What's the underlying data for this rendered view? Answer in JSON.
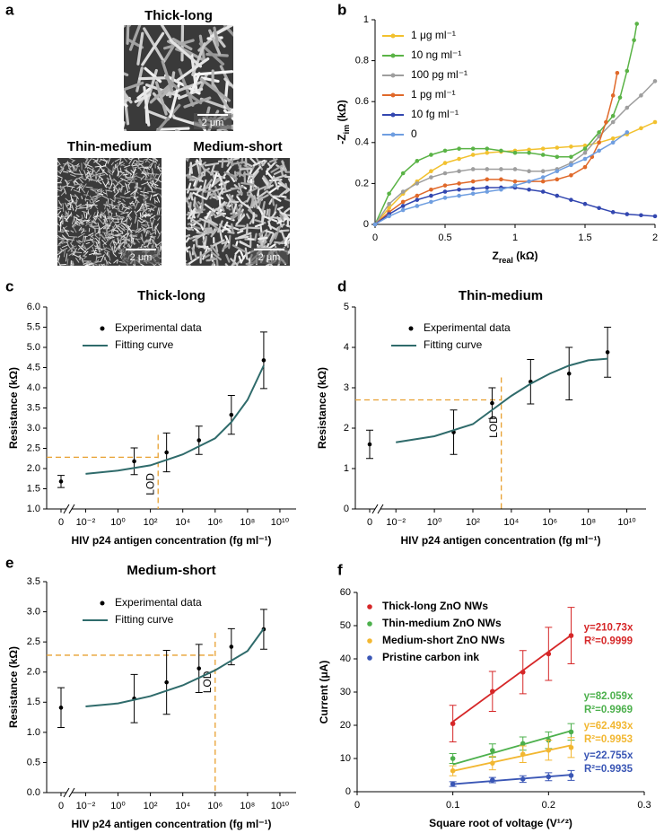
{
  "panel_a": {
    "panel": "a",
    "images": [
      {
        "title": "Thick-long",
        "scale_bar": "2 μm"
      },
      {
        "title": "Thin-medium",
        "scale_bar": "2 μm"
      },
      {
        "title": "Medium-short",
        "scale_bar": "2 μm"
      }
    ]
  },
  "chart_data": [
    {
      "type": "line",
      "panel": "b",
      "x_label": [
        "Z",
        "real",
        " (kΩ)"
      ],
      "y_label": [
        "-Z",
        "im",
        " (kΩ)"
      ],
      "xlim": [
        0,
        2
      ],
      "xticks": [
        0,
        0.5,
        1,
        1.5,
        2
      ],
      "ylim": [
        0,
        1
      ],
      "yticks": [
        0,
        0.2,
        0.4,
        0.6,
        0.8,
        1
      ],
      "series": [
        {
          "name": "1 μg ml⁻¹",
          "color": "#f2c12e",
          "x": [
            0,
            0.1,
            0.2,
            0.3,
            0.4,
            0.5,
            0.6,
            0.7,
            0.8,
            0.9,
            1,
            1.1,
            1.2,
            1.3,
            1.4,
            1.5,
            1.6,
            1.7,
            1.8,
            1.9,
            2
          ],
          "values": [
            0,
            0.08,
            0.15,
            0.21,
            0.26,
            0.3,
            0.32,
            0.34,
            0.35,
            0.355,
            0.36,
            0.365,
            0.37,
            0.375,
            0.38,
            0.385,
            0.4,
            0.42,
            0.44,
            0.47,
            0.5
          ]
        },
        {
          "name": "10 ng ml⁻¹",
          "color": "#5ab346",
          "x": [
            0,
            0.1,
            0.2,
            0.3,
            0.4,
            0.5,
            0.6,
            0.7,
            0.8,
            0.9,
            1,
            1.1,
            1.2,
            1.3,
            1.4,
            1.5,
            1.6,
            1.7,
            1.75,
            1.8,
            1.85,
            1.87
          ],
          "values": [
            0,
            0.15,
            0.25,
            0.31,
            0.34,
            0.36,
            0.37,
            0.37,
            0.37,
            0.36,
            0.35,
            0.35,
            0.34,
            0.33,
            0.33,
            0.37,
            0.45,
            0.53,
            0.62,
            0.75,
            0.9,
            0.98
          ]
        },
        {
          "name": "100 pg ml⁻¹",
          "color": "#9e9e9e",
          "x": [
            0,
            0.1,
            0.2,
            0.3,
            0.4,
            0.5,
            0.6,
            0.7,
            0.8,
            0.9,
            1,
            1.1,
            1.2,
            1.3,
            1.4,
            1.5,
            1.6,
            1.7,
            1.8,
            1.9,
            2
          ],
          "values": [
            0,
            0.1,
            0.16,
            0.2,
            0.23,
            0.25,
            0.26,
            0.27,
            0.27,
            0.27,
            0.27,
            0.26,
            0.26,
            0.27,
            0.3,
            0.35,
            0.43,
            0.5,
            0.57,
            0.63,
            0.7
          ]
        },
        {
          "name": "1 pg ml⁻¹",
          "color": "#e0692a",
          "x": [
            0,
            0.1,
            0.2,
            0.3,
            0.4,
            0.5,
            0.6,
            0.7,
            0.8,
            0.9,
            1,
            1.1,
            1.2,
            1.3,
            1.4,
            1.5,
            1.55,
            1.6,
            1.65,
            1.7,
            1.73
          ],
          "values": [
            0,
            0.06,
            0.11,
            0.14,
            0.17,
            0.19,
            0.2,
            0.21,
            0.22,
            0.22,
            0.21,
            0.21,
            0.21,
            0.22,
            0.24,
            0.28,
            0.33,
            0.4,
            0.5,
            0.63,
            0.74
          ]
        },
        {
          "name": "10 fg ml⁻¹",
          "color": "#3347b0",
          "x": [
            0,
            0.1,
            0.2,
            0.3,
            0.4,
            0.5,
            0.6,
            0.7,
            0.8,
            0.9,
            1,
            1.1,
            1.2,
            1.3,
            1.4,
            1.5,
            1.6,
            1.7,
            1.8,
            1.9,
            2
          ],
          "values": [
            0,
            0.05,
            0.09,
            0.12,
            0.14,
            0.16,
            0.17,
            0.175,
            0.18,
            0.18,
            0.18,
            0.17,
            0.16,
            0.14,
            0.12,
            0.1,
            0.08,
            0.06,
            0.05,
            0.045,
            0.04
          ]
        },
        {
          "name": "0",
          "color": "#6f9ee0",
          "x": [
            0,
            0.1,
            0.2,
            0.3,
            0.4,
            0.5,
            0.6,
            0.7,
            0.8,
            0.9,
            1,
            1.1,
            1.2,
            1.3,
            1.4,
            1.5,
            1.6,
            1.7,
            1.8
          ],
          "values": [
            0,
            0.04,
            0.07,
            0.09,
            0.11,
            0.13,
            0.14,
            0.15,
            0.16,
            0.17,
            0.19,
            0.21,
            0.23,
            0.26,
            0.29,
            0.32,
            0.36,
            0.4,
            0.45
          ]
        }
      ]
    },
    {
      "type": "scatter",
      "panel": "c",
      "title": "Thick-long",
      "x_label": "HIV p24 antigen concentration (fg ml⁻¹)",
      "y_label": "Resistance (kΩ)",
      "xscale": "log",
      "axis_break": true,
      "xlim": [
        0.003,
        100000000000
      ],
      "xticks": [
        0,
        {
          "value": 0.01,
          "label": "10⁻²"
        },
        {
          "value": 1,
          "label": "10⁰"
        },
        {
          "value": 100,
          "label": "10²"
        },
        {
          "value": 10000,
          "label": "10⁴"
        },
        {
          "value": 1000000,
          "label": "10⁶"
        },
        {
          "value": 100000000,
          "label": "10⁸"
        },
        {
          "value": 10000000000,
          "label": "10¹⁰"
        }
      ],
      "ylim": [
        1,
        6
      ],
      "yticks": [
        {
          "value": 1,
          "label": "1.0"
        },
        {
          "value": 1.5,
          "label": "1.5"
        },
        {
          "value": 2,
          "label": "2.0"
        },
        {
          "value": 2.5,
          "label": "2.5"
        },
        {
          "value": 3,
          "label": "3.0"
        },
        {
          "value": 3.5,
          "label": "3.5"
        },
        {
          "value": 4,
          "label": "4.0"
        },
        {
          "value": 4.5,
          "label": "4.5"
        },
        {
          "value": 5,
          "label": "5.0"
        },
        {
          "value": 5.5,
          "label": "5.5"
        },
        {
          "value": 6,
          "label": "6.0"
        }
      ],
      "series": [
        {
          "name": "Experimental data",
          "color": "#000000",
          "x": [
            0,
            10,
            1000,
            100000,
            10000000,
            1000000000
          ],
          "values": [
            1.68,
            2.18,
            2.4,
            2.7,
            3.33,
            4.68
          ],
          "errors": [
            0.15,
            0.33,
            0.48,
            0.35,
            0.48,
            0.7
          ]
        },
        {
          "name": "Fitting curve",
          "color": "#2f6b6b",
          "x": [
            0.01,
            1,
            100,
            10000,
            1000000,
            10000000,
            100000000,
            1000000000
          ],
          "values": [
            1.87,
            1.95,
            2.08,
            2.35,
            2.75,
            3.15,
            3.7,
            4.55
          ]
        }
      ],
      "lod": {
        "label": "LOD",
        "x": 300,
        "y": 2.28,
        "color": "#e8a030"
      }
    },
    {
      "type": "scatter",
      "panel": "d",
      "title": "Thin-medium",
      "x_label": "HIV p24 antigen concentration (fg ml⁻¹)",
      "y_label": "Resistance (kΩ)",
      "xscale": "log",
      "axis_break": true,
      "xlim": [
        0.003,
        100000000000
      ],
      "xticks": [
        0,
        {
          "value": 0.01,
          "label": "10⁻²"
        },
        {
          "value": 1,
          "label": "10⁰"
        },
        {
          "value": 100,
          "label": "10²"
        },
        {
          "value": 10000,
          "label": "10⁴"
        },
        {
          "value": 1000000,
          "label": "10⁶"
        },
        {
          "value": 100000000,
          "label": "10⁸"
        },
        {
          "value": 10000000000,
          "label": "10¹⁰"
        }
      ],
      "ylim": [
        0,
        5
      ],
      "yticks": [
        0,
        1,
        2,
        3,
        4,
        5
      ],
      "series": [
        {
          "name": "Experimental data",
          "color": "#000000",
          "x": [
            0,
            10,
            1000,
            100000,
            10000000,
            1000000000
          ],
          "values": [
            1.6,
            1.9,
            2.62,
            3.15,
            3.35,
            3.88
          ],
          "errors": [
            0.35,
            0.55,
            0.38,
            0.55,
            0.65,
            0.62
          ]
        },
        {
          "name": "Fitting curve",
          "color": "#2f6b6b",
          "x": [
            0.01,
            1,
            100,
            1000,
            10000,
            100000,
            1000000,
            10000000,
            100000000,
            1000000000
          ],
          "values": [
            1.65,
            1.8,
            2.1,
            2.45,
            2.8,
            3.1,
            3.35,
            3.55,
            3.68,
            3.72
          ]
        }
      ],
      "lod": {
        "label": "LOD",
        "x": 3000,
        "y": 2.7,
        "color": "#e8a030"
      }
    },
    {
      "type": "scatter",
      "panel": "e",
      "title": "Medium-short",
      "x_label": "HIV p24 antigen concentration (fg ml⁻¹)",
      "y_label": "Resistance (kΩ)",
      "xscale": "log",
      "axis_break": true,
      "xlim": [
        0.003,
        100000000000
      ],
      "xticks": [
        0,
        {
          "value": 0.01,
          "label": "10⁻²"
        },
        {
          "value": 1,
          "label": "10⁰"
        },
        {
          "value": 100,
          "label": "10²"
        },
        {
          "value": 10000,
          "label": "10⁴"
        },
        {
          "value": 1000000,
          "label": "10⁶"
        },
        {
          "value": 100000000,
          "label": "10⁸"
        },
        {
          "value": 10000000000,
          "label": "10¹⁰"
        }
      ],
      "ylim": [
        0,
        3.5
      ],
      "yticks": [
        {
          "value": 0,
          "label": "0.0"
        },
        {
          "value": 0.5,
          "label": "0.5"
        },
        {
          "value": 1,
          "label": "1.0"
        },
        {
          "value": 1.5,
          "label": "1.5"
        },
        {
          "value": 2,
          "label": "2.0"
        },
        {
          "value": 2.5,
          "label": "2.5"
        },
        {
          "value": 3,
          "label": "3.0"
        },
        {
          "value": 3.5,
          "label": "3.5"
        }
      ],
      "series": [
        {
          "name": "Experimental data",
          "color": "#000000",
          "x": [
            0,
            10,
            1000,
            100000,
            10000000,
            1000000000
          ],
          "values": [
            1.41,
            1.56,
            1.83,
            2.06,
            2.42,
            2.71
          ],
          "errors": [
            0.33,
            0.4,
            0.53,
            0.4,
            0.3,
            0.33
          ]
        },
        {
          "name": "Fitting curve",
          "color": "#2f6b6b",
          "x": [
            0.01,
            1,
            100,
            10000,
            1000000,
            100000000,
            1000000000
          ],
          "values": [
            1.43,
            1.48,
            1.6,
            1.78,
            2.03,
            2.35,
            2.72
          ]
        }
      ],
      "lod": {
        "label": "LOD",
        "x": 1000000,
        "y": 2.28,
        "color": "#e8a030"
      }
    },
    {
      "type": "scatter",
      "panel": "f",
      "x_label": "Square root of voltage (V¹ᐟ²)",
      "y_label": "Current (μA)",
      "xlim": [
        0,
        0.3
      ],
      "xticks": [
        0,
        0.1,
        0.2,
        0.3
      ],
      "ylim": [
        0,
        60
      ],
      "yticks": [
        0,
        10,
        20,
        30,
        40,
        50,
        60
      ],
      "series": [
        {
          "name": "Thick-long ZnO NWs",
          "color": "#d62728",
          "x": [
            0.1,
            0.1414,
            0.1732,
            0.2,
            0.2236
          ],
          "values": [
            20.5,
            30.2,
            36,
            41.5,
            47
          ],
          "errors": [
            5.5,
            6,
            6.5,
            8,
            8.5
          ],
          "fit": {
            "slope": 210.73,
            "label": "y=210.73x",
            "r2_label": "R²=0.9999"
          }
        },
        {
          "name": "Thin-medium ZnO NWs",
          "color": "#4cb04c",
          "x": [
            0.1,
            0.1414,
            0.1732,
            0.2,
            0.2236
          ],
          "values": [
            10,
            12.4,
            14.5,
            15.5,
            18
          ],
          "errors": [
            1.5,
            2,
            2,
            2.5,
            2.5
          ],
          "fit": {
            "slope": 82.059,
            "label": "y=82.059x",
            "r2_label": "R²=0.9969"
          }
        },
        {
          "name": "Medium-short ZnO NWs",
          "color": "#f2b731",
          "x": [
            0.1,
            0.1414,
            0.1732,
            0.2,
            0.2236
          ],
          "values": [
            6.3,
            8.6,
            11.3,
            12.5,
            13.3
          ],
          "errors": [
            1.5,
            2,
            2.5,
            3,
            3
          ],
          "fit": {
            "slope": 62.493,
            "label": "y=62.493x",
            "r2_label": "R²=0.9953"
          }
        },
        {
          "name": "Pristine carbon ink",
          "color": "#3a56b5",
          "x": [
            0.1,
            0.1414,
            0.1732,
            0.2,
            0.2236
          ],
          "values": [
            2.3,
            3.5,
            3.8,
            4.5,
            4.9
          ],
          "errors": [
            0.7,
            0.8,
            1,
            1.2,
            1.5
          ],
          "fit": {
            "slope": 22.755,
            "label": "y=22.755x",
            "r2_label": "R²=0.9935"
          }
        }
      ]
    }
  ]
}
